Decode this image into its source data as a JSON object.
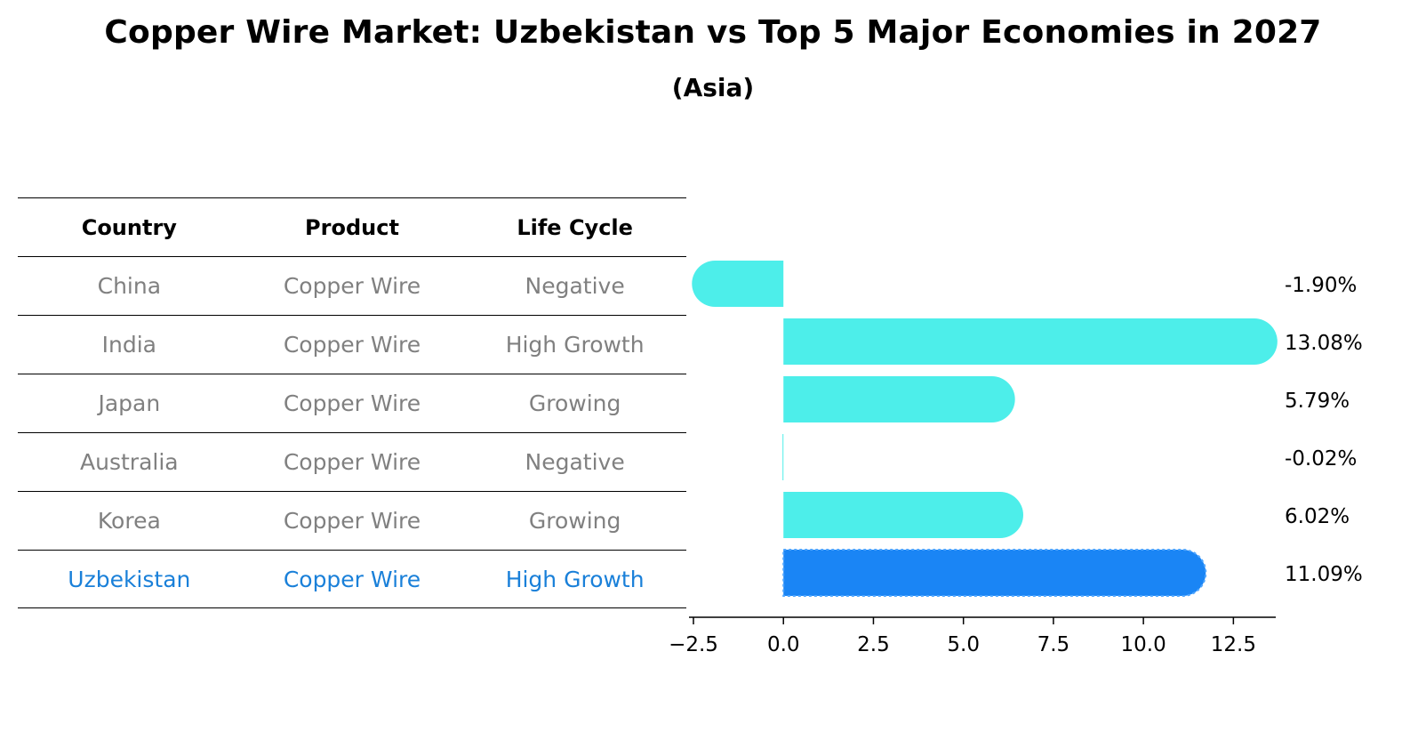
{
  "title": "Copper Wire Market: Uzbekistan vs Top 5 Major Economies in 2027",
  "subtitle": "(Asia)",
  "table": {
    "headers": [
      "Country",
      "Product",
      "Life Cycle"
    ],
    "rows": [
      [
        "China",
        "Copper Wire",
        "Negative"
      ],
      [
        "India",
        "Copper Wire",
        "High Growth"
      ],
      [
        "Japan",
        "Copper Wire",
        "Growing"
      ],
      [
        "Australia",
        "Copper Wire",
        "Negative"
      ],
      [
        "Korea",
        "Copper Wire",
        "Growing"
      ],
      [
        "Uzbekistan",
        "Copper Wire",
        "High Growth"
      ]
    ],
    "highlight_row": 5
  },
  "colors": {
    "bar": "#4deeea",
    "highlight_bar": "#1a85f5",
    "highlight_text": "#1a80d9",
    "muted_text": "#808080"
  },
  "chart_data": {
    "type": "bar",
    "orientation": "horizontal",
    "categories": [
      "China",
      "India",
      "Japan",
      "Australia",
      "Korea",
      "Uzbekistan"
    ],
    "values": [
      -1.9,
      13.08,
      5.79,
      -0.02,
      6.02,
      11.09
    ],
    "value_labels": [
      "-1.90%",
      "13.08%",
      "5.79%",
      "-0.02%",
      "6.02%",
      "11.09%"
    ],
    "xlim": [
      -2.5,
      13.8
    ],
    "xticks": [
      -2.5,
      0.0,
      2.5,
      5.0,
      7.5,
      10.0,
      12.5
    ],
    "xtick_labels": [
      "−2.5",
      "0.0",
      "2.5",
      "5.0",
      "7.5",
      "10.0",
      "12.5"
    ],
    "highlight_index": 5
  }
}
